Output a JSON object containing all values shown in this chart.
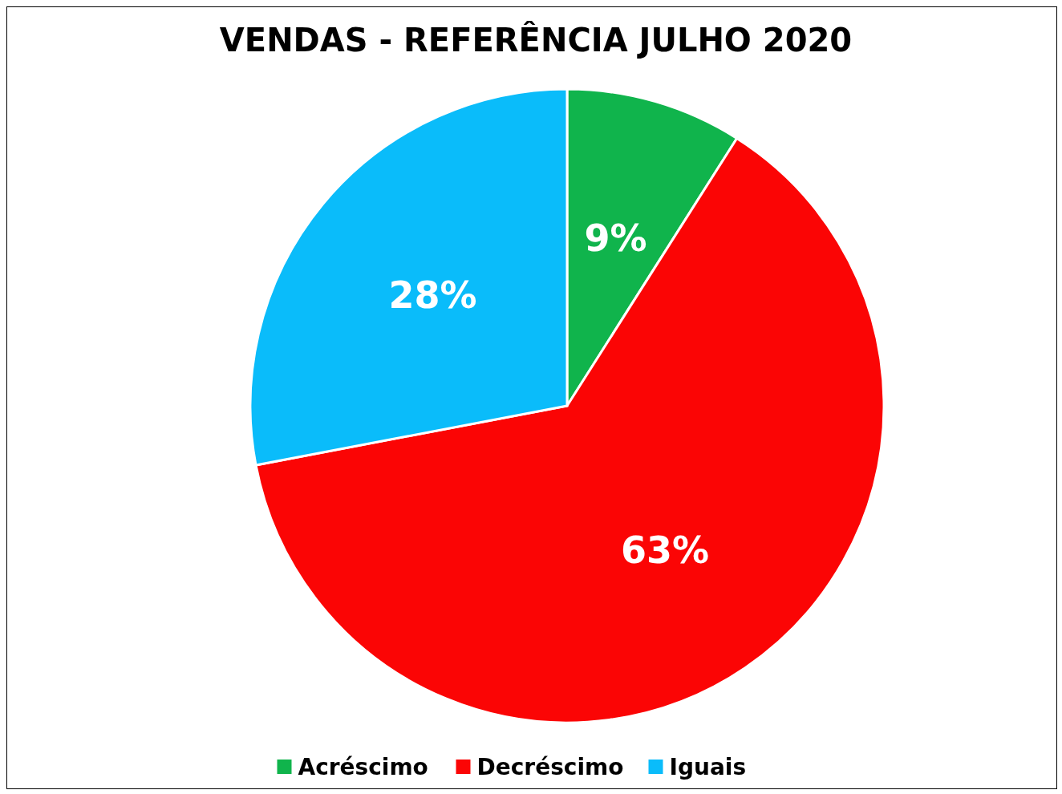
{
  "chart_data": {
    "type": "pie",
    "title": "VENDAS - REFERÊNCIA JULHO 2020",
    "categories": [
      "Acréscimo",
      "Decréscimo",
      "Iguais"
    ],
    "values": [
      9,
      63,
      28
    ],
    "colors": [
      "#10b44c",
      "#fb0505",
      "#0abcfa"
    ],
    "value_labels": [
      "9%",
      "63%",
      "28%"
    ],
    "legend": "bottom"
  }
}
